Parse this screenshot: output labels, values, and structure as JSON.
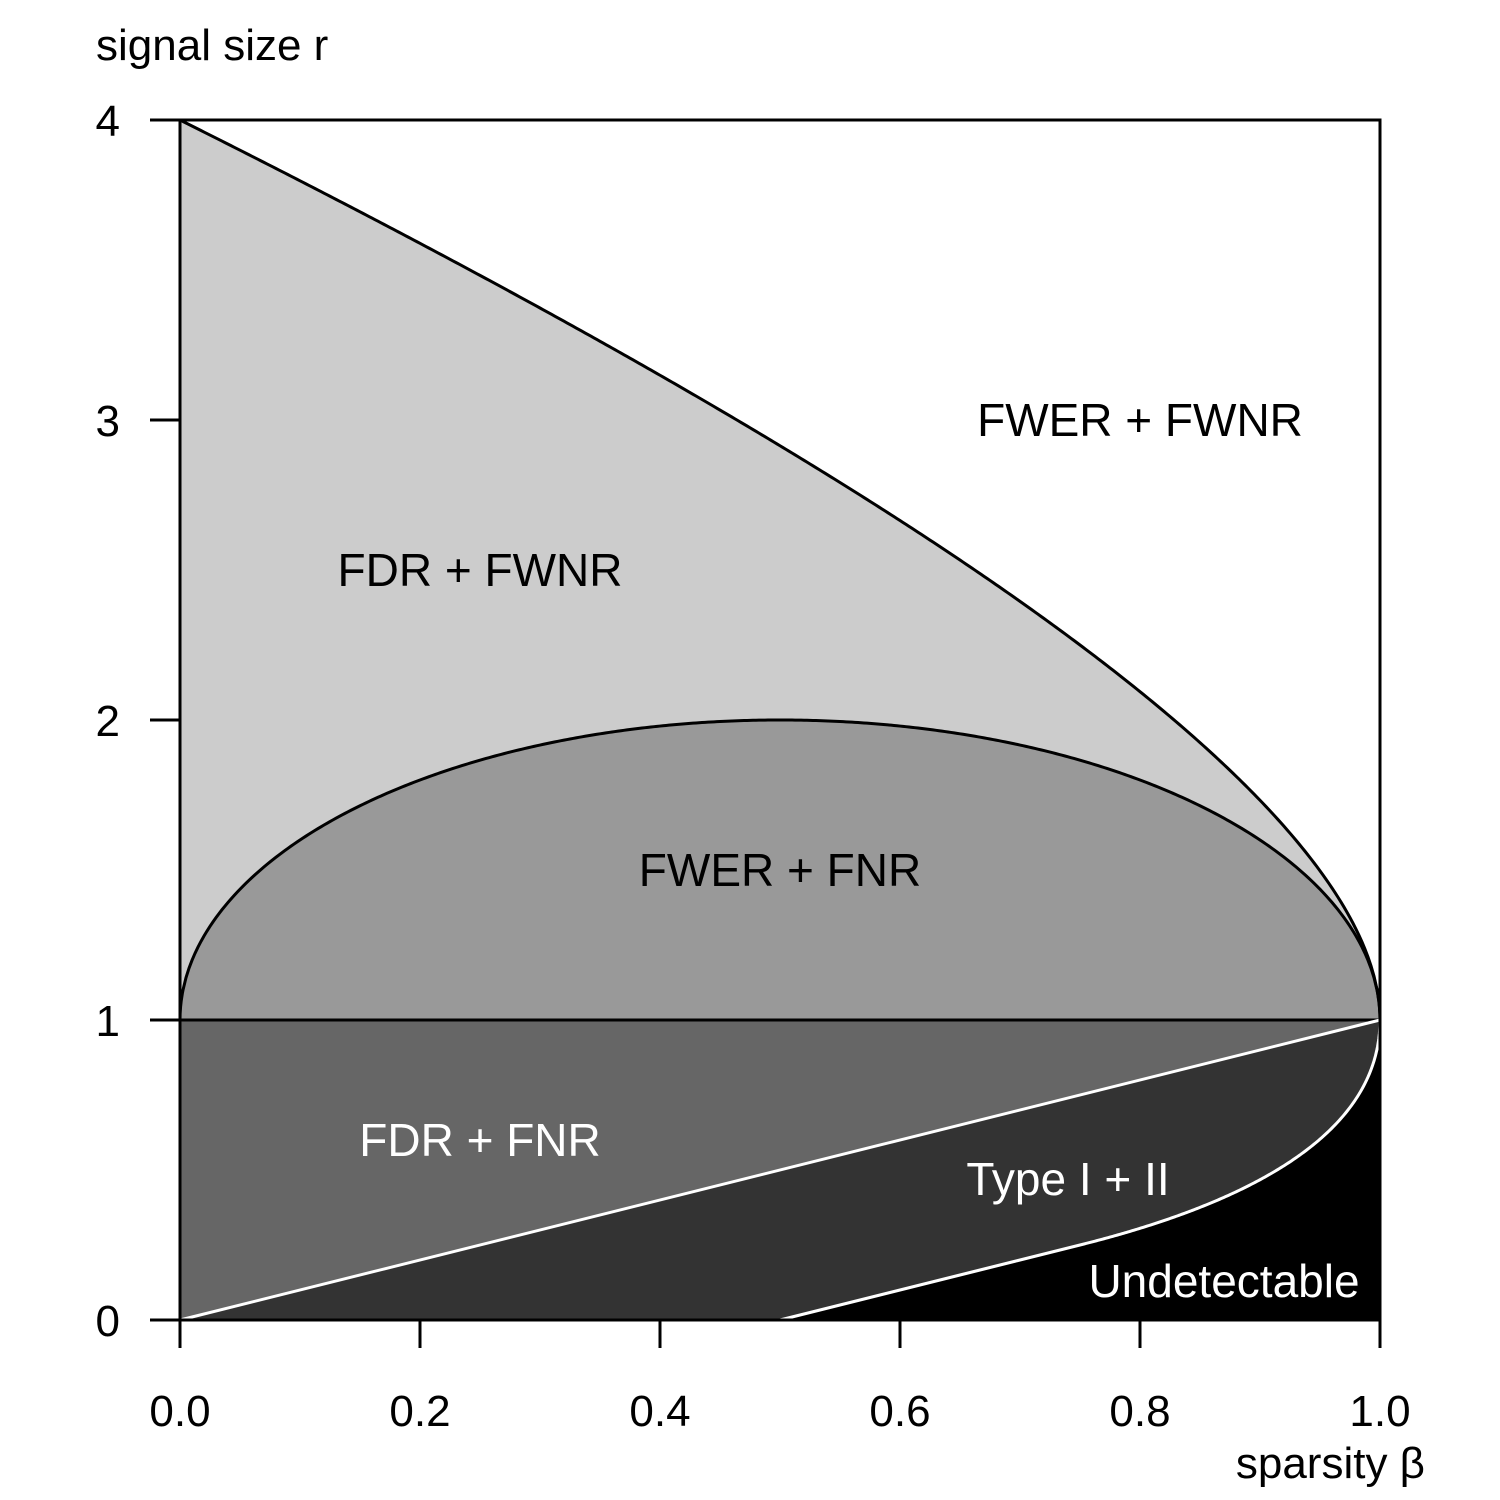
{
  "chart_data": {
    "type": "area",
    "xlabel": "sparsity β",
    "ylabel": "signal size r",
    "xlim": [
      0,
      1
    ],
    "ylim": [
      0,
      4
    ],
    "x_ticks": [
      "0.0",
      "0.2",
      "0.4",
      "0.6",
      "0.8",
      "1.0"
    ],
    "y_ticks": [
      "0",
      "1",
      "2",
      "3",
      "4"
    ],
    "grid": false,
    "boundaries": [
      {
        "formula": "r = (1 + sqrt(1 - beta))^2",
        "points": [
          [
            0,
            4
          ],
          [
            0.2,
            3.6
          ],
          [
            0.4,
            3.15
          ],
          [
            0.6,
            2.66
          ],
          [
            0.8,
            2.09
          ],
          [
            1.0,
            1.0
          ]
        ]
      },
      {
        "formula": "r = 1 + 2*sqrt(beta*(1 - beta))",
        "points": [
          [
            0,
            1
          ],
          [
            0.2,
            1.8
          ],
          [
            0.5,
            2.0
          ],
          [
            0.8,
            1.8
          ],
          [
            1.0,
            1.0
          ]
        ]
      },
      {
        "formula": "r = 1",
        "points": [
          [
            0,
            1
          ],
          [
            1.0,
            1
          ]
        ]
      },
      {
        "formula": "r = beta",
        "points": [
          [
            0,
            0
          ],
          [
            1.0,
            1.0
          ]
        ]
      },
      {
        "formula": "detection boundary",
        "points": [
          [
            0.5,
            0
          ],
          [
            0.75,
            0.25
          ],
          [
            0.9,
            0.49
          ],
          [
            1.0,
            1.0
          ]
        ]
      }
    ],
    "regions": [
      {
        "label": "FWER + FWNR",
        "fill": "#ffffff",
        "label_color": "#000000",
        "label_x": 0.8,
        "label_y": 3.0
      },
      {
        "label": "FDR + FWNR",
        "fill": "#cccccc",
        "label_color": "#000000",
        "label_x": 0.25,
        "label_y": 2.5
      },
      {
        "label": "FWER + FNR",
        "fill": "#999999",
        "label_color": "#000000",
        "label_x": 0.5,
        "label_y": 1.5
      },
      {
        "label": "FDR + FNR",
        "fill": "#666666",
        "label_color": "#ffffff",
        "label_x": 0.25,
        "label_y": 0.6
      },
      {
        "label": "Type I + II",
        "fill": "#333333",
        "label_color": "#ffffff",
        "label_x": 0.74,
        "label_y": 0.47
      },
      {
        "label": "Undetectable",
        "fill": "#000000",
        "label_color": "#ffffff",
        "label_x": 0.87,
        "label_y": 0.13
      }
    ]
  }
}
